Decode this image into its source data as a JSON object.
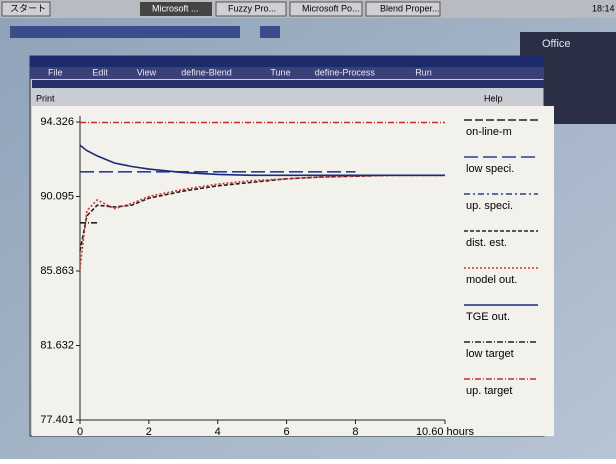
{
  "taskbar": {
    "start": "スタート",
    "items": [
      "Microsoft ...",
      "Fuzzy Pro...",
      "Microsoft Po...",
      "Blend Proper..."
    ],
    "clock": "18:14"
  },
  "office": {
    "title": "Office"
  },
  "menu": [
    "File",
    "Edit",
    "View",
    "define-Blend",
    "Tune",
    "define-Process",
    "Run"
  ],
  "submenu": {
    "print": "Print",
    "help": "Help"
  },
  "chart_data": {
    "type": "line",
    "x": [
      0,
      0.2,
      0.5,
      1,
      1.5,
      2,
      3,
      4,
      5,
      6,
      7,
      8,
      9,
      10.6
    ],
    "xlim": [
      0,
      10.6
    ],
    "xticks": [
      0,
      2,
      4,
      6,
      8,
      {
        "value": 10.6,
        "label": "10.60 hours"
      }
    ],
    "ylim": [
      77.401,
      94.326
    ],
    "yticks": [
      77.401,
      81.632,
      85.863,
      90.095,
      94.326
    ],
    "series": [
      {
        "name": "on-line-m",
        "color": "#222222",
        "dash": "8 3",
        "values": [
          null,
          null,
          null,
          null,
          null,
          null,
          null,
          null,
          null,
          null,
          null,
          null,
          null,
          null
        ]
      },
      {
        "name": "low speci.",
        "color": "#2b3f9a",
        "dash": "14 5",
        "values": [
          91.5,
          91.5,
          91.5,
          91.5,
          91.5,
          91.5,
          91.5,
          91.5,
          91.5,
          91.5,
          91.5,
          91.5,
          null,
          null
        ]
      },
      {
        "name": "up. speci.",
        "color": "#2b3f9a",
        "dash": "6 3 2 3",
        "values": [
          null,
          null,
          null,
          null,
          null,
          null,
          null,
          null,
          null,
          null,
          null,
          null,
          null,
          null
        ]
      },
      {
        "name": "dist. est.",
        "color": "#222222",
        "dash": "4 2",
        "values": [
          87.0,
          89.0,
          89.6,
          89.5,
          89.6,
          90.0,
          90.4,
          90.7,
          90.9,
          91.1,
          91.2,
          91.25,
          91.3,
          91.3
        ]
      },
      {
        "name": "model out.",
        "color": "#d8302a",
        "dash": "2 2",
        "values": [
          86.0,
          89.3,
          89.9,
          89.4,
          89.7,
          90.1,
          90.5,
          90.8,
          91.0,
          91.1,
          91.2,
          91.25,
          91.3,
          91.3
        ]
      },
      {
        "name": "TGE out.",
        "color": "#1c2a7a",
        "dash": "",
        "values": [
          93.0,
          92.7,
          92.4,
          92.0,
          91.8,
          91.65,
          91.45,
          91.35,
          91.3,
          91.3,
          91.3,
          91.3,
          91.3,
          91.3
        ]
      },
      {
        "name": "low target",
        "color": "#222222",
        "dash": "6 2 1 2",
        "values": [
          88.6,
          88.6,
          88.6,
          null,
          null,
          null,
          null,
          null,
          null,
          null,
          null,
          null,
          null,
          null
        ]
      },
      {
        "name": "up. target",
        "color": "#c0302a",
        "dash": "6 2 1 2",
        "values": [
          94.3,
          94.3,
          94.3,
          94.3,
          94.3,
          94.3,
          94.3,
          94.3,
          94.3,
          94.3,
          94.3,
          94.3,
          94.3,
          94.3
        ]
      }
    ]
  }
}
